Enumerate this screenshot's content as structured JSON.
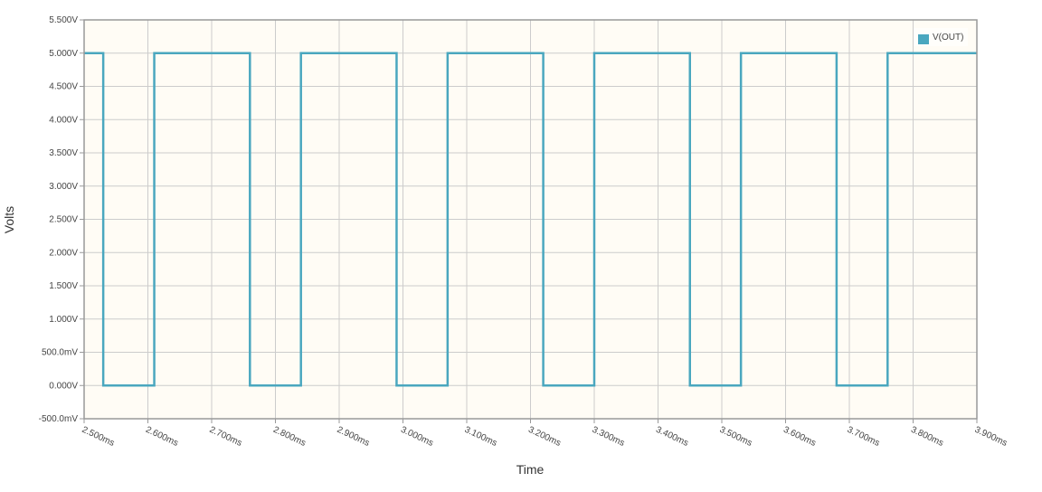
{
  "chart_data": {
    "type": "line",
    "xlabel": "Time",
    "ylabel": "Volts",
    "xlim": [
      2.5,
      3.9
    ],
    "ylim": [
      -0.5,
      5.5
    ],
    "x_ticks": [
      2.5,
      2.6,
      2.7,
      2.8,
      2.9,
      3.0,
      3.1,
      3.2,
      3.3,
      3.4,
      3.5,
      3.6,
      3.7,
      3.8,
      3.9
    ],
    "x_tick_labels": [
      "2.500ms",
      "2.600ms",
      "2.700ms",
      "2.800ms",
      "2.900ms",
      "3.000ms",
      "3.100ms",
      "3.200ms",
      "3.300ms",
      "3.400ms",
      "3.500ms",
      "3.600ms",
      "3.700ms",
      "3.800ms",
      "3.900ms"
    ],
    "y_ticks": [
      5.5,
      5.0,
      4.5,
      4.0,
      3.5,
      3.0,
      2.5,
      2.0,
      1.5,
      1.0,
      0.5,
      0.0,
      -0.5
    ],
    "y_tick_labels": [
      "5.500V",
      "5.000V",
      "4.500V",
      "4.000V",
      "3.500V",
      "3.000V",
      "2.500V",
      "2.000V",
      "1.500V",
      "1.000V",
      "500.0mV",
      "0.000V",
      "-500.0mV"
    ],
    "grid": true,
    "legend_position": "top-right",
    "colors": {
      "plot_bg": "#fffcf5",
      "grid": "#cccccc",
      "series": "#4aa7bf",
      "axis": "#999999"
    },
    "series": [
      {
        "name": "V(OUT)",
        "x": [
          2.5,
          2.53,
          2.53,
          2.61,
          2.61,
          2.76,
          2.76,
          2.84,
          2.84,
          2.99,
          2.99,
          3.07,
          3.07,
          3.22,
          3.22,
          3.3,
          3.3,
          3.45,
          3.45,
          3.53,
          3.53,
          3.68,
          3.68,
          3.76,
          3.76,
          3.9
        ],
        "y": [
          5,
          5,
          0,
          0,
          5,
          5,
          0,
          0,
          5,
          5,
          0,
          0,
          5,
          5,
          0,
          0,
          5,
          5,
          0,
          0,
          5,
          5,
          0,
          0,
          5,
          5
        ]
      }
    ]
  }
}
